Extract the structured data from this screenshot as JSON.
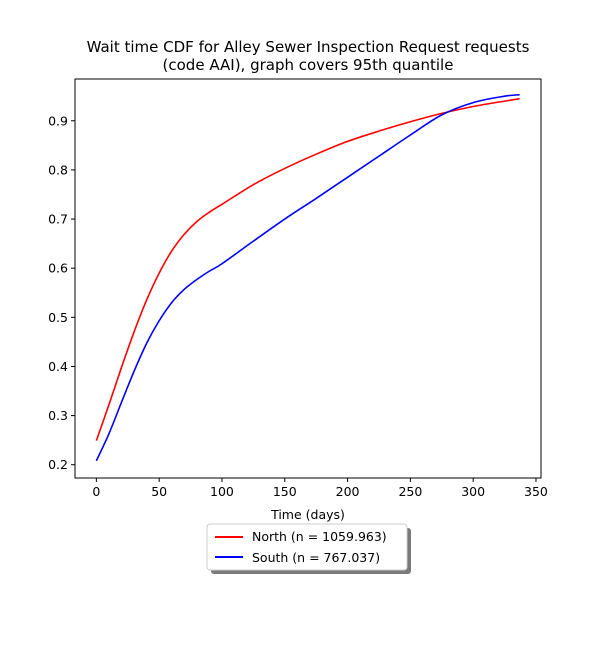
{
  "chart_data": {
    "type": "line",
    "title_lines": [
      "Wait time CDF for Alley Sewer Inspection Request  requests",
      "(code AAI), graph covers 95th quantile"
    ],
    "xlabel": "Time (days)",
    "ylabel": "",
    "xlim": [
      -17,
      354
    ],
    "ylim": [
      0.173,
      0.985
    ],
    "xticks": [
      0,
      50,
      100,
      150,
      200,
      250,
      300,
      350
    ],
    "yticks": [
      0.2,
      0.3,
      0.4,
      0.5,
      0.6,
      0.7,
      0.8,
      0.9
    ],
    "grid": false,
    "legend_position": "below-center",
    "series": [
      {
        "name": "North (n = 1059.963)",
        "color": "#ff0000",
        "x": [
          0,
          10,
          20,
          30,
          40,
          50,
          60,
          70,
          80,
          90,
          100,
          125,
          150,
          175,
          200,
          225,
          250,
          275,
          300,
          325,
          337
        ],
        "y": [
          0.249,
          0.322,
          0.398,
          0.47,
          0.535,
          0.59,
          0.635,
          0.669,
          0.695,
          0.714,
          0.73,
          0.77,
          0.803,
          0.832,
          0.858,
          0.879,
          0.898,
          0.915,
          0.929,
          0.94,
          0.945
        ]
      },
      {
        "name": "South (n = 767.037)",
        "color": "#0000ff",
        "x": [
          0,
          10,
          20,
          30,
          40,
          50,
          60,
          70,
          80,
          90,
          100,
          125,
          150,
          175,
          200,
          225,
          250,
          275,
          300,
          325,
          337
        ],
        "y": [
          0.208,
          0.263,
          0.327,
          0.39,
          0.447,
          0.493,
          0.53,
          0.557,
          0.577,
          0.594,
          0.609,
          0.655,
          0.7,
          0.742,
          0.785,
          0.828,
          0.871,
          0.912,
          0.937,
          0.95,
          0.953
        ]
      }
    ]
  }
}
